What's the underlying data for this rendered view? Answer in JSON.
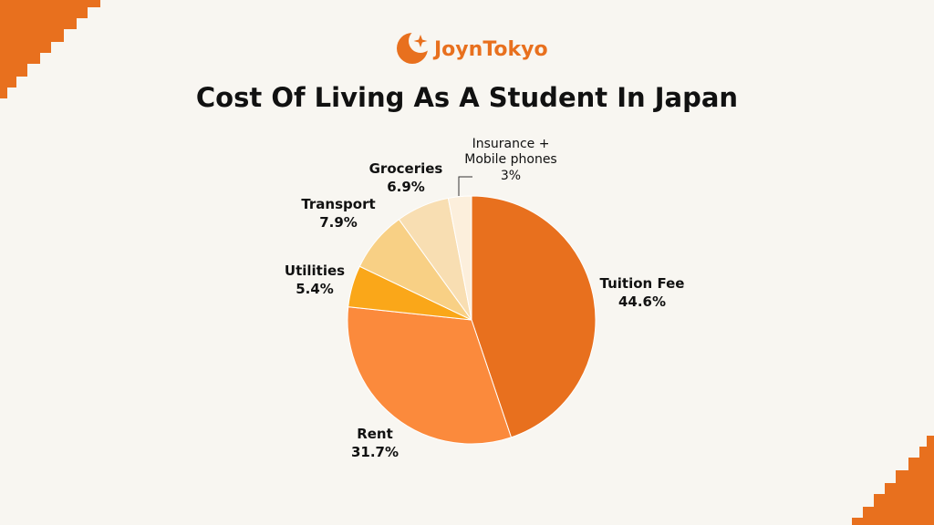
{
  "brand": {
    "name_part1": "Joyn",
    "name_part2": "Tokyo",
    "color": "#e8701e",
    "logo_icon": "crescent-moon-star-icon"
  },
  "colors": {
    "background": "#f8f6f1",
    "corner_accent": "#e8701e"
  },
  "chart_data": {
    "type": "pie",
    "title": "Cost Of Living As A Student In Japan",
    "start_angle_deg": 0,
    "direction": "clockwise",
    "slices": [
      {
        "name": "Tuition Fee",
        "value": 44.6,
        "label": "44.6%",
        "color": "#e8701e"
      },
      {
        "name": "Rent",
        "value": 31.7,
        "label": "31.7%",
        "color": "#fb8a3c"
      },
      {
        "name": "Utilities",
        "value": 5.4,
        "label": "5.4%",
        "color": "#faa719"
      },
      {
        "name": "Transport",
        "value": 7.9,
        "label": "7.9%",
        "color": "#f8d085"
      },
      {
        "name": "Groceries",
        "value": 6.9,
        "label": "6.9%",
        "color": "#f8deb2"
      },
      {
        "name_line1": "Insurance +",
        "name_line2": "Mobile phones",
        "value": 3,
        "label": "3%",
        "color": "#fcefdc"
      }
    ]
  }
}
